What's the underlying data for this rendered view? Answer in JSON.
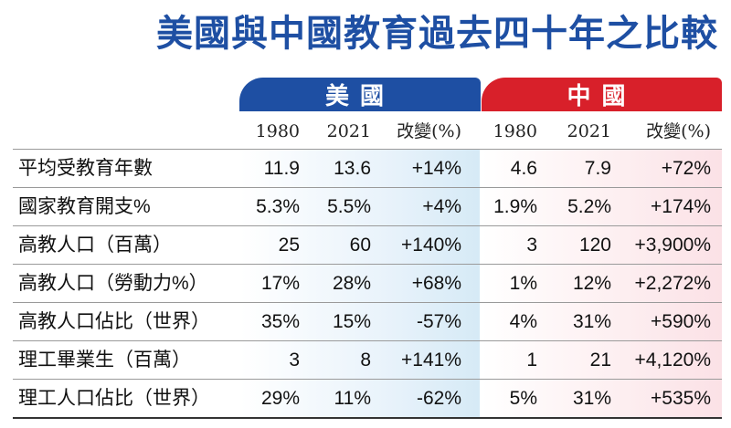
{
  "title": "美國與中國教育過去四十年之比較",
  "groups": {
    "us": "美國",
    "cn": "中國"
  },
  "columns": [
    "1980",
    "2021",
    "改變(%)",
    "1980",
    "2021",
    "改變(%)"
  ],
  "rows": [
    {
      "label": "平均受教育年數",
      "us": [
        "11.9",
        "13.6",
        "+14%"
      ],
      "cn": [
        "4.6",
        "7.9",
        "+72%"
      ]
    },
    {
      "label": "國家教育開支%",
      "us": [
        "5.3%",
        "5.5%",
        "+4%"
      ],
      "cn": [
        "1.9%",
        "5.2%",
        "+174%"
      ]
    },
    {
      "label": "高教人口（百萬）",
      "us": [
        "25",
        "60",
        "+140%"
      ],
      "cn": [
        "3",
        "120",
        "+3,900%"
      ]
    },
    {
      "label": "高教人口（勞動力%）",
      "us": [
        "17%",
        "28%",
        "+68%"
      ],
      "cn": [
        "1%",
        "12%",
        "+2,272%"
      ]
    },
    {
      "label": "高教人口佔比（世界）",
      "us": [
        "35%",
        "15%",
        "-57%"
      ],
      "cn": [
        "4%",
        "31%",
        "+590%"
      ]
    },
    {
      "label": "理工畢業生（百萬）",
      "us": [
        "3",
        "8",
        "+141%"
      ],
      "cn": [
        "1",
        "21",
        "+4,120%"
      ]
    },
    {
      "label": "理工人口佔比（世界）",
      "us": [
        "29%",
        "11%",
        "-62%"
      ],
      "cn": [
        "5%",
        "31%",
        "+535%"
      ]
    }
  ],
  "colors": {
    "us": "#1e4fa3",
    "cn": "#d8202a",
    "title": "#1e4fa3"
  },
  "chart_data": {
    "type": "table",
    "title": "美國與中國教育過去四十年之比較",
    "groups": [
      "美國",
      "中國"
    ],
    "columns": [
      "1980",
      "2021",
      "改變(%)"
    ],
    "row_labels": [
      "平均受教育年數",
      "國家教育開支%",
      "高教人口（百萬）",
      "高教人口（勞動力%）",
      "高教人口佔比（世界）",
      "理工畢業生（百萬）",
      "理工人口佔比（世界）"
    ]
  }
}
